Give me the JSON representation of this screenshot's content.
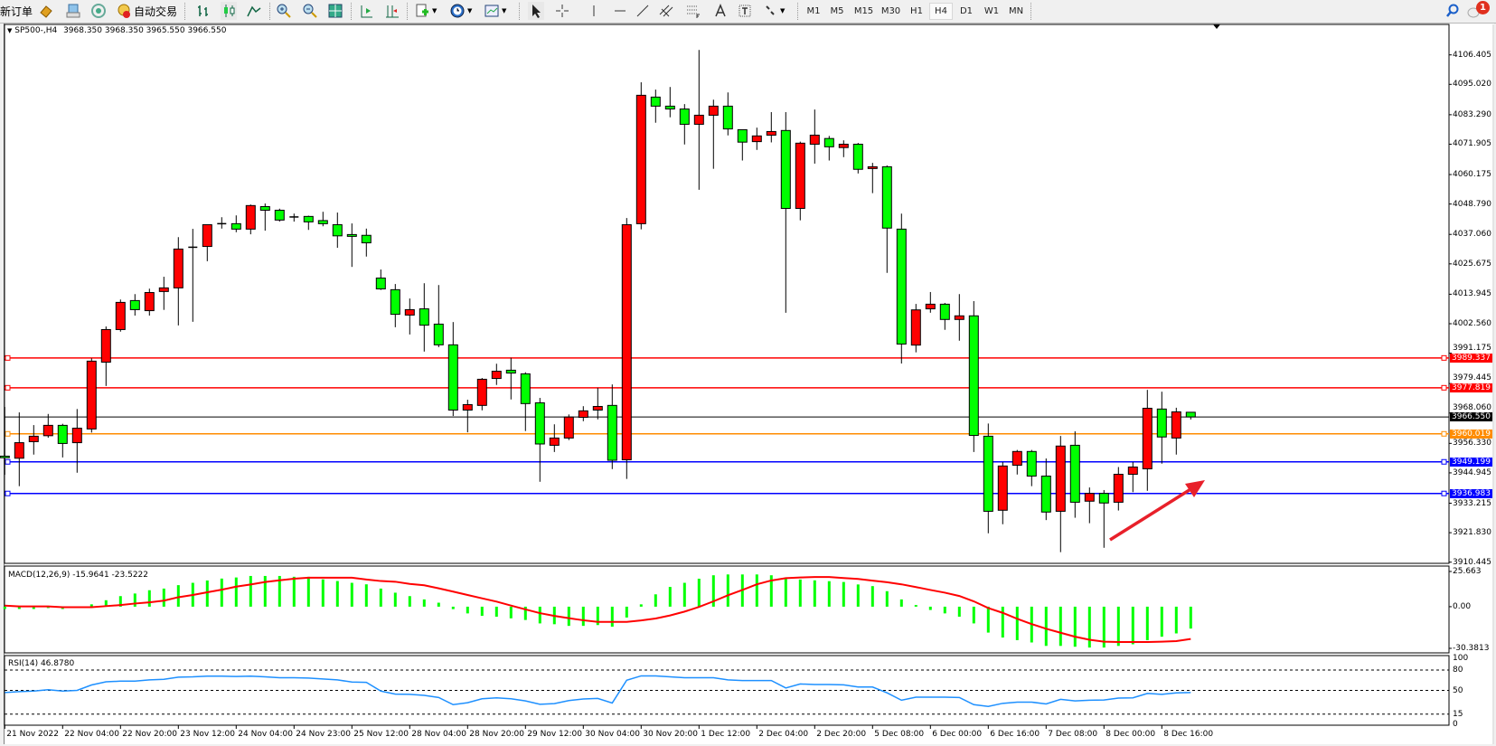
{
  "toolbar": {
    "new_order": "新订单",
    "auto_trading": "自动交易",
    "timeframes": [
      "M1",
      "M5",
      "M15",
      "M30",
      "H1",
      "H4",
      "D1",
      "W1",
      "MN"
    ],
    "active_timeframe": "H4",
    "notification_count": "1"
  },
  "chart_header": {
    "symbol_period": "SP500-,H4",
    "ohlc": "3968.350 3968.350 3965.550 3966.550"
  },
  "indicators": {
    "macd_label": "MACD(12,26,9) -15.9641 -23.5222",
    "rsi_label": "RSI(14) 46.8780"
  },
  "colors": {
    "bull_body": "#ff0000",
    "bear_body": "#00ff00",
    "macd_histogram": "#00ff00",
    "macd_signal": "#ff0000",
    "rsi_line": "#1e90ff",
    "arrow": "#e8202a"
  },
  "chart_data": {
    "type": "candlestick",
    "symbol": "SP500-",
    "timeframe": "H4",
    "x_labels": [
      "21 Nov 2022",
      "22 Nov 04:00",
      "22 Nov 20:00",
      "23 Nov 12:00",
      "24 Nov 04:00",
      "24 Nov 23:00",
      "25 Nov 12:00",
      "28 Nov 04:00",
      "28 Nov 20:00",
      "29 Nov 12:00",
      "30 Nov 04:00",
      "30 Nov 20:00",
      "1 Dec 12:00",
      "2 Dec 04:00",
      "2 Dec 20:00",
      "5 Dec 08:00",
      "6 Dec 00:00",
      "6 Dec 16:00",
      "7 Dec 08:00",
      "8 Dec 00:00",
      "8 Dec 16:00"
    ],
    "x_label_every_n_bars": 4,
    "price_axis": {
      "ticks": [
        "4106.405",
        "4095.020",
        "4083.290",
        "4071.905",
        "4060.175",
        "4048.790",
        "4037.060",
        "4025.675",
        "4013.945",
        "4002.560",
        "3991.175",
        "3979.445",
        "3968.060",
        "3956.330",
        "3944.945",
        "3933.215",
        "3921.830",
        "3910.445"
      ],
      "range": [
        3910.445,
        4106.405
      ]
    },
    "ohlc": [
      [
        3951.4,
        3970.4,
        3944.2,
        3950.8
      ],
      [
        3950.6,
        3968.3,
        3939.8,
        3956.6
      ],
      [
        3957.0,
        3963.4,
        3952.0,
        3959.1
      ],
      [
        3959.3,
        3967.7,
        3958.5,
        3963.3
      ],
      [
        3963.3,
        3963.9,
        3950.9,
        3956.3
      ],
      [
        3956.6,
        3969.6,
        3945.0,
        3962.2
      ],
      [
        3961.9,
        3989.2,
        3960.5,
        3988.1
      ],
      [
        3987.7,
        4001.5,
        3978.5,
        4000.3
      ],
      [
        4000.3,
        4011.9,
        3999.5,
        4010.8
      ],
      [
        4011.5,
        4014.0,
        4005.7,
        4008.0
      ],
      [
        4007.6,
        4016.1,
        4005.7,
        4014.6
      ],
      [
        4015.0,
        4020.7,
        4007.9,
        4016.4
      ],
      [
        4016.4,
        4036.0,
        4001.9,
        4031.4
      ],
      [
        4031.7,
        4039.2,
        4003.3,
        4032.1
      ],
      [
        4032.4,
        4040.8,
        4026.7,
        4040.8
      ],
      [
        4040.7,
        4043.7,
        4039.3,
        4041.2
      ],
      [
        4041.2,
        4044.4,
        4037.9,
        4039.1
      ],
      [
        4039.1,
        4048.6,
        4037.1,
        4048.2
      ],
      [
        4047.8,
        4049.0,
        4038.5,
        4046.4
      ],
      [
        4046.4,
        4047.0,
        4042.0,
        4042.6
      ],
      [
        4043.5,
        4045.1,
        4042.0,
        4043.8
      ],
      [
        4044.0,
        4044.3,
        4038.8,
        4041.9
      ],
      [
        4042.4,
        4045.8,
        4040.2,
        4041.2
      ],
      [
        4040.8,
        4045.5,
        4031.9,
        4036.5
      ],
      [
        4037.0,
        4041.3,
        4024.5,
        4036.3
      ],
      [
        4036.7,
        4039.3,
        4028.5,
        4033.8
      ],
      [
        4020.2,
        4023.5,
        4015.6,
        4016.0
      ],
      [
        4015.7,
        4017.9,
        4001.2,
        4006.2
      ],
      [
        4005.9,
        4012.3,
        3998.4,
        4008.0
      ],
      [
        4008.3,
        4018.2,
        3991.8,
        4002.0
      ],
      [
        4002.4,
        4017.5,
        3993.5,
        3994.4
      ],
      [
        3994.4,
        4003.2,
        3966.9,
        3969.2
      ],
      [
        3969.2,
        3973.2,
        3960.6,
        3971.3
      ],
      [
        3971.0,
        3981.6,
        3969.1,
        3981.1
      ],
      [
        3981.4,
        3987.1,
        3978.9,
        3984.2
      ],
      [
        3984.6,
        3989.4,
        3973.3,
        3983.5
      ],
      [
        3983.2,
        3983.8,
        3961.1,
        3971.7
      ],
      [
        3972.0,
        3973.9,
        3941.5,
        3956.1
      ],
      [
        3955.6,
        3963.7,
        3953.0,
        3958.4
      ],
      [
        3958.4,
        3967.5,
        3957.6,
        3966.5
      ],
      [
        3966.4,
        3970.7,
        3964.9,
        3968.9
      ],
      [
        3969.2,
        3977.8,
        3965.6,
        3970.6
      ],
      [
        3971.0,
        3979.1,
        3946.4,
        3949.8
      ],
      [
        3950.0,
        4043.4,
        3942.6,
        4040.8
      ],
      [
        4041.2,
        4095.8,
        4039.0,
        4090.8
      ],
      [
        4090.1,
        4093.0,
        4080.2,
        4086.6
      ],
      [
        4086.6,
        4094.0,
        4082.3,
        4085.5
      ],
      [
        4085.5,
        4087.4,
        4071.8,
        4079.6
      ],
      [
        4079.6,
        4108.3,
        4054.3,
        4083.1
      ],
      [
        4083.1,
        4089.1,
        4062.4,
        4086.6
      ],
      [
        4086.6,
        4091.9,
        4075.3,
        4077.8
      ],
      [
        4077.5,
        4077.5,
        4065.6,
        4072.7
      ],
      [
        4072.9,
        4078.3,
        4069.7,
        4075.1
      ],
      [
        4075.4,
        4084.3,
        4072.6,
        4076.8
      ],
      [
        4077.2,
        4084.3,
        4006.8,
        4047.1
      ],
      [
        4047.1,
        4072.9,
        4042.5,
        4072.3
      ],
      [
        4071.9,
        4085.3,
        4064.4,
        4075.4
      ],
      [
        4074.1,
        4075.1,
        4065.6,
        4070.9
      ],
      [
        4070.6,
        4073.4,
        4066.9,
        4071.9
      ],
      [
        4071.9,
        4072.4,
        4060.6,
        4062.2
      ],
      [
        4062.5,
        4064.7,
        4053.0,
        4063.2
      ],
      [
        4063.2,
        4063.7,
        4022.2,
        4039.5
      ],
      [
        4039.1,
        4045.1,
        3987.2,
        3994.7
      ],
      [
        3994.3,
        4010.2,
        3991.5,
        4007.9
      ],
      [
        4008.3,
        4014.8,
        4006.8,
        4010.1
      ],
      [
        4010.1,
        4010.6,
        4000.2,
        4004.2
      ],
      [
        4004.2,
        4014.0,
        3996.0,
        4005.6
      ],
      [
        4005.6,
        4011.3,
        3953.0,
        3959.4
      ],
      [
        3959.1,
        3964.0,
        3921.6,
        3930.1
      ],
      [
        3930.5,
        3949.1,
        3925.1,
        3947.6
      ],
      [
        3947.9,
        3953.8,
        3944.3,
        3953.2
      ],
      [
        3953.2,
        3953.8,
        3939.8,
        3943.7
      ],
      [
        3943.7,
        3950.5,
        3926.7,
        3929.8
      ],
      [
        3930.1,
        3959.2,
        3914.3,
        3955.3
      ],
      [
        3955.6,
        3961.0,
        3927.6,
        3933.6
      ],
      [
        3934.0,
        3939.3,
        3925.5,
        3937.0
      ],
      [
        3937.0,
        3938.3,
        3916.0,
        3933.3
      ],
      [
        3933.6,
        3947.2,
        3930.4,
        3944.4
      ],
      [
        3944.4,
        3949.1,
        3937.5,
        3947.2
      ],
      [
        3946.5,
        3977.0,
        3938.0,
        3969.9
      ],
      [
        3969.6,
        3976.3,
        3948.5,
        3958.8
      ],
      [
        3958.4,
        3970.1,
        3952.0,
        3968.5
      ],
      [
        3968.35,
        3968.35,
        3965.55,
        3966.55
      ]
    ],
    "levels": [
      {
        "price": 3989.337,
        "label": "3989.337",
        "color": "#ff0000"
      },
      {
        "price": 3977.819,
        "label": "3977.819",
        "color": "#ff0000"
      },
      {
        "price": 3960.019,
        "label": "3960.019",
        "color": "#ff8c00"
      },
      {
        "price": 3949.199,
        "label": "3949.199",
        "color": "#0000ff"
      },
      {
        "price": 3936.983,
        "label": "3936.983",
        "color": "#0000ff"
      }
    ],
    "bid_line": {
      "price": 3966.55,
      "label": "3966.550",
      "color": "#000000"
    },
    "macd": {
      "params": "12,26,9",
      "axis_ticks": [
        "25.663",
        "0.00",
        "-30.3813"
      ],
      "range": [
        -30.3813,
        25.663
      ],
      "histogram": [
        -1.7,
        -1.7,
        -1.7,
        -1.0,
        -1.7,
        0,
        1.7,
        4.7,
        7.7,
        9.6,
        12.0,
        13.2,
        15.7,
        17.4,
        19.1,
        20.5,
        21.3,
        22.4,
        22.4,
        22.4,
        21.8,
        21.8,
        19.9,
        18.7,
        17.4,
        16.3,
        13.2,
        10.2,
        7.7,
        5.3,
        2.9,
        -1.8,
        -4.9,
        -6.7,
        -7.3,
        -8.5,
        -9.7,
        -12.2,
        -12.8,
        -14.0,
        -14.0,
        -13.4,
        -14.6,
        -7.9,
        1.7,
        9.0,
        14.4,
        17.4,
        20.4,
        22.9,
        23.5,
        23.5,
        23.5,
        22.9,
        21.1,
        19.8,
        19.2,
        18.6,
        18.0,
        16.2,
        15.0,
        11.3,
        5.3,
        1.2,
        -2.4,
        -4.9,
        -7.3,
        -12.2,
        -18.9,
        -22.5,
        -24.4,
        -26.1,
        -28.6,
        -28.6,
        -29.2,
        -29.8,
        -29.8,
        -28.6,
        -27.4,
        -24.4,
        -21.9,
        -19.5,
        -15.96
      ],
      "signal": [
        0.8,
        0.2,
        0.2,
        0.2,
        -0.4,
        -0.4,
        -0.4,
        0.4,
        1.2,
        2.3,
        3.2,
        4.4,
        6.9,
        8.5,
        10.5,
        12.4,
        14.6,
        16.2,
        18.0,
        19.2,
        20.4,
        21.1,
        21.1,
        21.1,
        21.1,
        19.8,
        18.7,
        18.2,
        16.6,
        15.6,
        13.4,
        11.0,
        8.5,
        6.1,
        3.7,
        0.8,
        -2.0,
        -4.7,
        -6.7,
        -8.4,
        -9.9,
        -11.1,
        -11.1,
        -11.1,
        -10.0,
        -8.6,
        -6.4,
        -3.6,
        -0.2,
        3.9,
        8.3,
        12.2,
        16.3,
        19.1,
        20.8,
        21.3,
        21.6,
        21.6,
        20.9,
        20.2,
        19.0,
        17.8,
        16.3,
        14.3,
        12.2,
        10.2,
        7.8,
        3.9,
        -1.0,
        -4.5,
        -8.8,
        -12.7,
        -16.1,
        -19.0,
        -21.9,
        -24.1,
        -25.5,
        -25.8,
        -25.8,
        -25.8,
        -25.5,
        -25.1,
        -23.52
      ]
    },
    "rsi": {
      "period": 14,
      "axis_ticks": [
        "100",
        "80",
        "50",
        "15",
        "0"
      ],
      "levels": [
        80,
        50,
        15
      ],
      "range": [
        0,
        100
      ],
      "values": [
        46.8,
        48.2,
        49,
        51,
        49,
        50,
        58,
        62.7,
        63.6,
        63.6,
        65.5,
        66.4,
        69.5,
        70,
        71,
        71,
        70.5,
        71,
        70,
        68.6,
        68.6,
        68.2,
        66.8,
        65.5,
        62.3,
        61.8,
        49,
        44.5,
        44.1,
        42.7,
        39.5,
        29,
        31.8,
        37.7,
        39,
        37.7,
        34.5,
        29.5,
        30.5,
        35,
        37.3,
        38.2,
        31.4,
        65,
        71.4,
        71.4,
        70,
        68.6,
        68.6,
        68.6,
        65.5,
        64.5,
        64.5,
        64.5,
        53.6,
        59.5,
        58.6,
        58.6,
        58.2,
        55,
        55,
        46.4,
        35.5,
        40,
        40,
        40,
        39.5,
        29,
        26.4,
        30.9,
        32.7,
        32.7,
        30,
        36.8,
        34.5,
        35.5,
        35.9,
        38.6,
        39,
        45.5,
        44.1,
        46.4,
        46.878
      ]
    },
    "grid": false,
    "annotation": "red arrow pointing up-right below the last candles"
  }
}
